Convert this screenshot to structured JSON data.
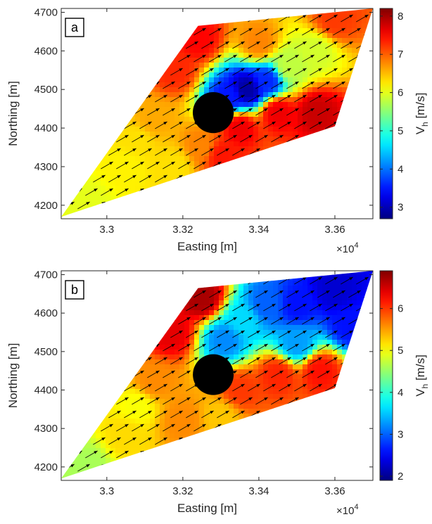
{
  "chart_data": [
    {
      "type": "heatmap",
      "panel_label": "a",
      "xlabel": "Easting [m]",
      "ylabel": "Northing [m]",
      "x_exponent_label": "×10",
      "x_exponent_power": "4",
      "xlim": [
        32880,
        33700
      ],
      "ylim": [
        4165,
        4710
      ],
      "xticks": [
        33000,
        33200,
        33400,
        33600
      ],
      "xtick_labels": [
        "3.3",
        "3.32",
        "3.34",
        "3.36"
      ],
      "yticks": [
        4200,
        4300,
        4400,
        4500,
        4600,
        4700
      ],
      "ytick_labels": [
        "4200",
        "4300",
        "4400",
        "4500",
        "4600",
        "4700"
      ],
      "colorbar": {
        "label": "V",
        "label_sub": "h",
        "label_unit": " [m/s]",
        "clim": [
          2.7,
          8.2
        ],
        "ticks": [
          3,
          4,
          5,
          6,
          7,
          8
        ],
        "tick_labels": [
          "3",
          "4",
          "5",
          "6",
          "7",
          "8"
        ],
        "colormap": "jet"
      },
      "domain_polygon": [
        [
          32880,
          4170
        ],
        [
          33240,
          4665
        ],
        [
          33700,
          4710
        ],
        [
          33600,
          4405
        ]
      ],
      "obstacle": {
        "x": 33280,
        "y": 4440,
        "radius": 53,
        "color": "#000000"
      },
      "velocity_samples": [
        {
          "x": 32950,
          "y": 4200,
          "v": 6.0
        },
        {
          "x": 33050,
          "y": 4300,
          "v": 6.2
        },
        {
          "x": 33120,
          "y": 4420,
          "v": 6.6
        },
        {
          "x": 33180,
          "y": 4550,
          "v": 7.3
        },
        {
          "x": 33240,
          "y": 4630,
          "v": 7.5
        },
        {
          "x": 33180,
          "y": 4300,
          "v": 6.3
        },
        {
          "x": 33250,
          "y": 4350,
          "v": 6.8
        },
        {
          "x": 33320,
          "y": 4480,
          "v": 3.5
        },
        {
          "x": 33370,
          "y": 4500,
          "v": 2.9
        },
        {
          "x": 33420,
          "y": 4520,
          "v": 3.6
        },
        {
          "x": 33480,
          "y": 4560,
          "v": 5.8
        },
        {
          "x": 33450,
          "y": 4440,
          "v": 7.6
        },
        {
          "x": 33550,
          "y": 4440,
          "v": 7.8
        },
        {
          "x": 33400,
          "y": 4620,
          "v": 6.8
        },
        {
          "x": 33600,
          "y": 4680,
          "v": 7.2
        },
        {
          "x": 33550,
          "y": 4600,
          "v": 5.9
        },
        {
          "x": 33350,
          "y": 4400,
          "v": 7.6
        },
        {
          "x": 33300,
          "y": 4330,
          "v": 7.4
        },
        {
          "x": 33080,
          "y": 4370,
          "v": 6.3
        }
      ],
      "wind_direction_deg": 30
    },
    {
      "type": "heatmap",
      "panel_label": "b",
      "xlabel": "Easting [m]",
      "ylabel": "Northing [m]",
      "x_exponent_label": "×10",
      "x_exponent_power": "4",
      "xlim": [
        32880,
        33700
      ],
      "ylim": [
        4165,
        4710
      ],
      "xticks": [
        33000,
        33200,
        33400,
        33600
      ],
      "xtick_labels": [
        "3.3",
        "3.32",
        "3.34",
        "3.36"
      ],
      "yticks": [
        4200,
        4300,
        4400,
        4500,
        4600,
        4700
      ],
      "ytick_labels": [
        "4200",
        "4300",
        "4400",
        "4500",
        "4600",
        "4700"
      ],
      "colorbar": {
        "label": "V",
        "label_sub": "h",
        "label_unit": " [m/s]",
        "clim": [
          1.9,
          6.9
        ],
        "ticks": [
          2,
          3,
          4,
          5,
          6
        ],
        "tick_labels": [
          "2",
          "3",
          "4",
          "5",
          "6"
        ],
        "colormap": "jet"
      },
      "domain_polygon": [
        [
          32880,
          4170
        ],
        [
          33240,
          4665
        ],
        [
          33700,
          4710
        ],
        [
          33600,
          4405
        ]
      ],
      "obstacle": {
        "x": 33280,
        "y": 4440,
        "radius": 53,
        "color": "#000000"
      },
      "velocity_samples": [
        {
          "x": 32950,
          "y": 4200,
          "v": 4.6
        },
        {
          "x": 33050,
          "y": 4280,
          "v": 5.2
        },
        {
          "x": 33120,
          "y": 4420,
          "v": 5.6
        },
        {
          "x": 33170,
          "y": 4550,
          "v": 6.4
        },
        {
          "x": 33250,
          "y": 4640,
          "v": 6.7
        },
        {
          "x": 33200,
          "y": 4320,
          "v": 5.6
        },
        {
          "x": 33310,
          "y": 4530,
          "v": 3.2
        },
        {
          "x": 33360,
          "y": 4580,
          "v": 3.6
        },
        {
          "x": 33420,
          "y": 4620,
          "v": 3.0
        },
        {
          "x": 33500,
          "y": 4620,
          "v": 2.6
        },
        {
          "x": 33600,
          "y": 4660,
          "v": 2.3
        },
        {
          "x": 33640,
          "y": 4570,
          "v": 2.6
        },
        {
          "x": 33450,
          "y": 4440,
          "v": 6.1
        },
        {
          "x": 33560,
          "y": 4450,
          "v": 6.2
        },
        {
          "x": 33350,
          "y": 4400,
          "v": 6.0
        },
        {
          "x": 33300,
          "y": 4330,
          "v": 5.3
        },
        {
          "x": 33500,
          "y": 4520,
          "v": 3.3
        },
        {
          "x": 33080,
          "y": 4360,
          "v": 5.0
        }
      ],
      "wind_direction_deg": 30
    }
  ]
}
